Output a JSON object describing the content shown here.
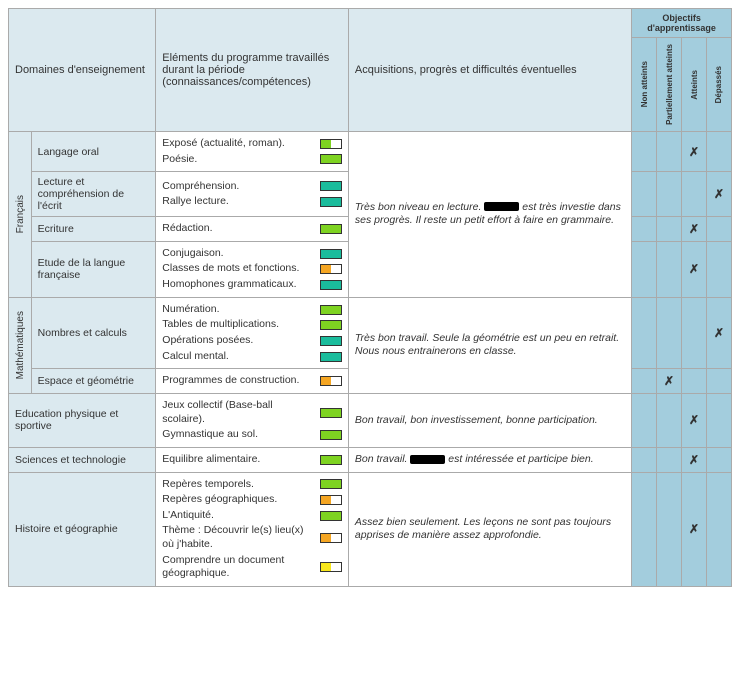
{
  "colors": {
    "green": "#7ed321",
    "teal": "#1abc9c",
    "orange": "#f5a623",
    "yellow": "#f8e71c"
  },
  "headers": {
    "domaines": "Domaines d'enseignement",
    "elements": "Eléments du programme travaillés durant la période (connaissances/compétences)",
    "acquisitions": "Acquisitions, progrès et difficultés éventuelles",
    "objectifs": "Objectifs d'apprentissage",
    "obj_cols": [
      "Non atteints",
      "Partiellement atteints",
      "Atteints",
      "Dépassés"
    ]
  },
  "rows": [
    {
      "domain_group": "Français",
      "group_span": 4,
      "subdomain": "Langage oral",
      "elements": [
        {
          "label": "Exposé (actualité, roman).",
          "color": "green",
          "fill": 0.5
        },
        {
          "label": "Poésie.",
          "color": "green",
          "fill": 1.0
        }
      ],
      "acquisition_rowspan": 4,
      "acquisition": "Très bon niveau en lecture. [REDACT] est très investie dans ses progrès. Il reste un petit effort à faire en grammaire.",
      "mark": 2
    },
    {
      "subdomain": "Lecture et compréhension de l'écrit",
      "elements": [
        {
          "label": "Compréhension.",
          "color": "teal",
          "fill": 1.0
        },
        {
          "label": "Rallye lecture.",
          "color": "teal",
          "fill": 1.0
        }
      ],
      "mark": 3
    },
    {
      "subdomain": "Ecriture",
      "elements": [
        {
          "label": "Rédaction.",
          "color": "green",
          "fill": 1.0
        }
      ],
      "mark": 2
    },
    {
      "subdomain": "Etude de la langue française",
      "elements": [
        {
          "label": "Conjugaison.",
          "color": "teal",
          "fill": 1.0
        },
        {
          "label": "Classes de mots et fonctions.",
          "color": "orange",
          "fill": 0.5
        },
        {
          "label": "Homophones grammaticaux.",
          "color": "teal",
          "fill": 1.0
        }
      ],
      "mark": 2
    },
    {
      "domain_group": "Mathématiques",
      "group_span": 2,
      "subdomain": "Nombres et calculs",
      "elements": [
        {
          "label": "Numération.",
          "color": "green",
          "fill": 1.0
        },
        {
          "label": "Tables de multiplications.",
          "color": "green",
          "fill": 1.0
        },
        {
          "label": "Opérations posées.",
          "color": "teal",
          "fill": 1.0
        },
        {
          "label": "Calcul mental.",
          "color": "teal",
          "fill": 1.0
        }
      ],
      "acquisition_rowspan": 2,
      "acquisition": "Très bon travail. Seule la géométrie est un peu en retrait. Nous nous entrainerons en classe.",
      "mark": 3
    },
    {
      "subdomain": "Espace et géométrie",
      "elements": [
        {
          "label": "Programmes de construction.",
          "color": "orange",
          "fill": 0.5
        }
      ],
      "mark": 1
    },
    {
      "merged_domain": "Education physique et sportive",
      "elements": [
        {
          "label": "Jeux collectif (Base-ball scolaire).",
          "color": "green",
          "fill": 1.0
        },
        {
          "label": "Gymnastique au sol.",
          "color": "green",
          "fill": 1.0
        }
      ],
      "acquisition": "Bon travail, bon investissement, bonne participation.",
      "mark": 2
    },
    {
      "merged_domain": "Sciences et technologie",
      "elements": [
        {
          "label": "Equilibre alimentaire.",
          "color": "green",
          "fill": 1.0
        }
      ],
      "acquisition": "Bon travail. [REDACT] est intéressée et participe bien.",
      "mark": 2
    },
    {
      "merged_domain": "Histoire et géographie",
      "elements": [
        {
          "label": "Repères temporels.",
          "color": "green",
          "fill": 1.0
        },
        {
          "label": "Repères géographiques.",
          "color": "orange",
          "fill": 0.5
        },
        {
          "label": "L'Antiquité.",
          "color": "green",
          "fill": 1.0
        },
        {
          "label": "Thème : Découvrir le(s) lieu(x) où j'habite.",
          "color": "orange",
          "fill": 0.5
        },
        {
          "label": "Comprendre un document géographique.",
          "color": "yellow",
          "fill": 0.5
        }
      ],
      "acquisition": "Assez bien seulement. Les leçons ne sont pas toujours apprises de manière assez approfondie.",
      "mark": 2
    }
  ]
}
